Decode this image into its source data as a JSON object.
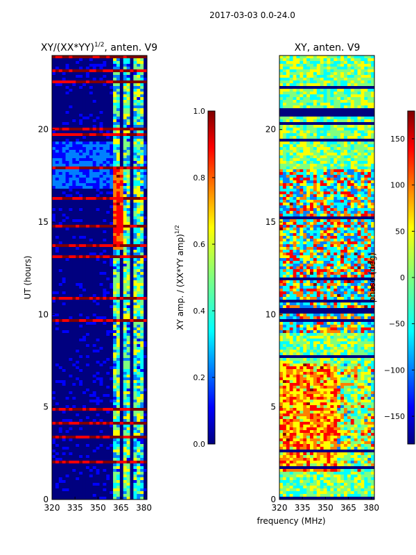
{
  "suptitle": "2017-03-03 0.0-24.0",
  "colors": {
    "jet": [
      "#00007f",
      "#0000ff",
      "#007fff",
      "#00ffff",
      "#7fff7f",
      "#ffff00",
      "#ff7f00",
      "#ff0000",
      "#7f0000"
    ],
    "axis": "#000000",
    "background": "#ffffff"
  },
  "chart_data": [
    {
      "type": "heatmap",
      "title_main": "XY/(XX*YY)",
      "title_exp": "1/2",
      "title_tail": ", anten. V9",
      "xlabel": "",
      "ylabel": "UT (hours)",
      "xlim": [
        320,
        382
      ],
      "ylim": [
        0,
        24
      ],
      "xticks": [
        320,
        335,
        350,
        365,
        380
      ],
      "yticks": [
        0,
        5,
        10,
        15,
        20
      ],
      "colorbar": {
        "label_main": "XY amp. / (XX*YY amp)",
        "label_exp": "1/2",
        "range": [
          0.0,
          1.0
        ],
        "ticks": [
          "0.0",
          "0.2",
          "0.4",
          "0.6",
          "0.8",
          "1.0"
        ],
        "tick_values": [
          0.0,
          0.2,
          0.4,
          0.6,
          0.8,
          1.0
        ]
      }
    },
    {
      "type": "heatmap",
      "title_main": "XY, anten. V9",
      "xlabel": "frequency (MHz)",
      "ylabel": "",
      "xlim": [
        320,
        382
      ],
      "ylim": [
        0,
        24
      ],
      "xticks": [
        320,
        335,
        350,
        365,
        380
      ],
      "yticks": [
        0,
        5,
        10,
        15,
        20
      ],
      "colorbar": {
        "label_main": "phase (deg)",
        "range": [
          -180,
          180
        ],
        "ticks": [
          "150",
          "100",
          "50",
          "0",
          "−50",
          "−100",
          "−150"
        ],
        "tick_values": [
          150,
          100,
          50,
          0,
          -50,
          -100,
          -150
        ]
      }
    }
  ]
}
